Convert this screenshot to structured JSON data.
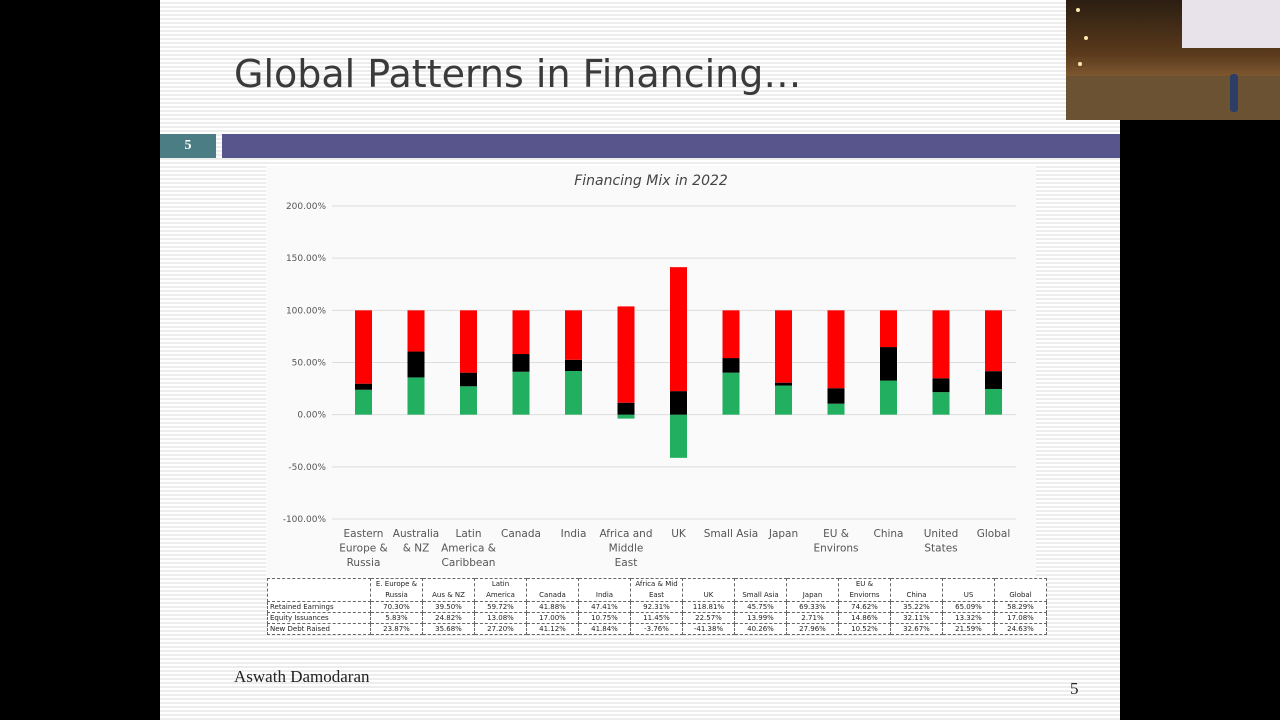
{
  "slide": {
    "title": "Global Patterns in Financing…",
    "slide_number_box": "5",
    "author": "Aswath Damodaran",
    "page_number": "5"
  },
  "colors": {
    "retained_earnings": "#ff0000",
    "equity_issuances": "#000000",
    "new_debt_raised": "#22b060",
    "header_bar": "#58548c",
    "number_box": "#4a7d84"
  },
  "chart_data": {
    "type": "bar",
    "stacked": true,
    "title": "Financing Mix in 2022",
    "categories": [
      "Eastern Europe & Russia",
      "Australia & NZ",
      "Latin America & Caribbean",
      "Canada",
      "India",
      "Africa and Middle East",
      "UK",
      "Small Asia",
      "Japan",
      "EU & Environs",
      "China",
      "United States",
      "Global"
    ],
    "category_lines": [
      [
        "Eastern",
        "Europe &",
        "Russia"
      ],
      [
        "Australia",
        "& NZ"
      ],
      [
        "Latin",
        "America &",
        "Caribbean"
      ],
      [
        "Canada"
      ],
      [
        "India"
      ],
      [
        "Africa and",
        "Middle",
        "East"
      ],
      [
        "UK"
      ],
      [
        "Small Asia"
      ],
      [
        "Japan"
      ],
      [
        "EU &",
        "Environs"
      ],
      [
        "China"
      ],
      [
        "United",
        "States"
      ],
      [
        "Global"
      ]
    ],
    "ylim": [
      -100,
      200
    ],
    "yticks": [
      200,
      150,
      100,
      50,
      0,
      -50,
      -100
    ],
    "ytick_labels": [
      "200.00%",
      "150.00%",
      "100.00%",
      "50.00%",
      "0.00%",
      "-50.00%",
      "-100.00%"
    ],
    "grid": true,
    "series": [
      {
        "name": "New Debt Raised",
        "values": [
          23.87,
          35.68,
          27.2,
          41.12,
          41.84,
          -3.76,
          -41.38,
          40.26,
          27.96,
          10.52,
          32.67,
          21.59,
          24.63
        ]
      },
      {
        "name": "Equity Issuances",
        "values": [
          5.83,
          24.82,
          13.08,
          17.0,
          10.75,
          11.45,
          22.57,
          13.99,
          2.71,
          14.86,
          32.11,
          13.32,
          17.08
        ]
      },
      {
        "name": "Retained Earnings",
        "values": [
          70.3,
          39.5,
          59.72,
          41.88,
          47.41,
          92.31,
          118.81,
          45.75,
          69.33,
          74.62,
          35.22,
          65.09,
          58.29
        ]
      }
    ]
  },
  "table": {
    "header_lines": [
      [
        "E. Europe &",
        "Russia"
      ],
      [
        "Aus & NZ"
      ],
      [
        "Latin",
        "America"
      ],
      [
        "Canada"
      ],
      [
        "India"
      ],
      [
        "Africa & Mid",
        "East"
      ],
      [
        "UK"
      ],
      [
        "Small Asia"
      ],
      [
        "Japan"
      ],
      [
        "EU &",
        "Enviorns"
      ],
      [
        "China"
      ],
      [
        "US"
      ],
      [
        "Global"
      ]
    ],
    "rows": [
      {
        "label": "Retained Earnings",
        "values": [
          "70.30%",
          "39.50%",
          "59.72%",
          "41.88%",
          "47.41%",
          "92.31%",
          "118.81%",
          "45.75%",
          "69.33%",
          "74.62%",
          "35.22%",
          "65.09%",
          "58.29%"
        ]
      },
      {
        "label": "Equity Issuances",
        "values": [
          "5.83%",
          "24.82%",
          "13.08%",
          "17.00%",
          "10.75%",
          "11.45%",
          "22.57%",
          "13.99%",
          "2.71%",
          "14.86%",
          "32.11%",
          "13.32%",
          "17.08%"
        ]
      },
      {
        "label": "New Debt Raised",
        "values": [
          "23.87%",
          "35.68%",
          "27.20%",
          "41.12%",
          "41.84%",
          "-3.76%",
          "-41.38%",
          "40.26%",
          "27.96%",
          "10.52%",
          "32.67%",
          "21.59%",
          "24.63%"
        ]
      }
    ]
  }
}
